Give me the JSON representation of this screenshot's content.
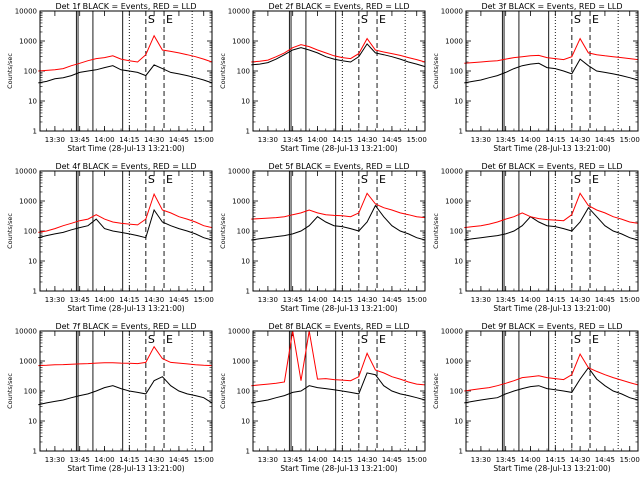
{
  "chart_data": {
    "type": "line",
    "layout": "3x3 grid of panels",
    "grid": false,
    "legend": "none (colors described in each panel title)",
    "ylabel": "Counts/sec",
    "ylog": true,
    "ylim": [
      1,
      10000
    ],
    "yticks": [
      "1",
      "10",
      "100",
      "1000",
      "10000"
    ],
    "xlim": [
      "13:21",
      "15:05"
    ],
    "xticks": [
      "13:30",
      "13:45",
      "14:00",
      "14:15",
      "14:30",
      "14:45",
      "15:00"
    ],
    "xlabel": "Start Time (28-Jul-13 13:21:00)",
    "colors": {
      "events": "#000000",
      "lld": "#ff0000",
      "frame": "#000000"
    },
    "marker_lines": [
      {
        "time": "13:21",
        "style": "dotted",
        "label": ""
      },
      {
        "time": "13:43",
        "style": "solid",
        "label": ""
      },
      {
        "time": "13:44",
        "style": "solid",
        "label": ""
      },
      {
        "time": "13:53",
        "style": "solid",
        "label": ""
      },
      {
        "time": "14:11",
        "style": "solid",
        "label": ""
      },
      {
        "time": "14:15",
        "style": "dotted",
        "label": ""
      },
      {
        "time": "14:25",
        "style": "dashed",
        "label": "S"
      },
      {
        "time": "14:36",
        "style": "dashed",
        "label": "E"
      },
      {
        "time": "14:53",
        "style": "dotted",
        "label": ""
      }
    ],
    "time_samples": [
      "13:20",
      "13:25",
      "13:30",
      "13:35",
      "13:40",
      "13:45",
      "13:50",
      "13:55",
      "14:00",
      "14:05",
      "14:10",
      "14:15",
      "14:20",
      "14:25",
      "14:30",
      "14:35",
      "14:40",
      "14:45",
      "14:50",
      "14:55",
      "15:00",
      "15:05"
    ],
    "panels": [
      {
        "title": "Det 1f BLACK = Events, RED = LLD",
        "series": [
          {
            "name": "Events",
            "color": "#000000",
            "values": [
              40,
              45,
              55,
              60,
              70,
              90,
              100,
              110,
              130,
              150,
              110,
              100,
              90,
              70,
              160,
              120,
              90,
              80,
              70,
              60,
              50,
              40
            ]
          },
          {
            "name": "LLD",
            "color": "#ff0000",
            "values": [
              100,
              105,
              110,
              120,
              150,
              180,
              220,
              260,
              280,
              320,
              250,
              220,
              200,
              350,
              1500,
              500,
              450,
              400,
              350,
              300,
              250,
              200
            ]
          }
        ]
      },
      {
        "title": "Det 2f BLACK = Events, RED = LLD",
        "series": [
          {
            "name": "Events",
            "color": "#000000",
            "values": [
              160,
              170,
              190,
              250,
              350,
              500,
              600,
              500,
              400,
              300,
              250,
              220,
              200,
              300,
              800,
              400,
              350,
              300,
              250,
              200,
              170,
              140
            ]
          },
          {
            "name": "LLD",
            "color": "#ff0000",
            "values": [
              200,
              210,
              230,
              300,
              400,
              600,
              750,
              650,
              500,
              400,
              320,
              280,
              260,
              380,
              1200,
              500,
              430,
              380,
              330,
              280,
              240,
              200
            ]
          }
        ]
      },
      {
        "title": "Det 3f BLACK = Events, RED = LLD",
        "series": [
          {
            "name": "Events",
            "color": "#000000",
            "values": [
              40,
              45,
              50,
              60,
              70,
              90,
              120,
              150,
              170,
              180,
              130,
              120,
              100,
              80,
              250,
              150,
              100,
              90,
              80,
              70,
              60,
              50
            ]
          },
          {
            "name": "LLD",
            "color": "#ff0000",
            "values": [
              180,
              190,
              200,
              210,
              220,
              250,
              280,
              300,
              320,
              330,
              280,
              260,
              240,
              300,
              1200,
              400,
              350,
              320,
              300,
              280,
              260,
              240
            ]
          }
        ]
      },
      {
        "title": "Det 4f BLACK = Events, RED = LLD",
        "series": [
          {
            "name": "Events",
            "color": "#000000",
            "values": [
              60,
              70,
              80,
              90,
              110,
              130,
              150,
              250,
              120,
              100,
              90,
              80,
              70,
              60,
              500,
              200,
              150,
              120,
              100,
              80,
              60,
              50
            ]
          },
          {
            "name": "LLD",
            "color": "#ff0000",
            "values": [
              90,
              100,
              120,
              150,
              180,
              220,
              250,
              350,
              250,
              200,
              180,
              170,
              160,
              250,
              1700,
              500,
              400,
              300,
              250,
              200,
              150,
              130
            ]
          }
        ]
      },
      {
        "title": "Det 5f BLACK = Events, RED = LLD",
        "series": [
          {
            "name": "Events",
            "color": "#000000",
            "values": [
              50,
              55,
              60,
              65,
              70,
              80,
              100,
              150,
              300,
              200,
              150,
              140,
              120,
              100,
              200,
              700,
              300,
              150,
              100,
              80,
              60,
              50
            ]
          },
          {
            "name": "LLD",
            "color": "#ff0000",
            "values": [
              250,
              260,
              270,
              280,
              300,
              350,
              400,
              500,
              400,
              350,
              330,
              320,
              300,
              400,
              1800,
              800,
              600,
              500,
              400,
              350,
              300,
              280
            ]
          }
        ]
      },
      {
        "title": "Det 6f BLACK = Events, RED = LLD",
        "series": [
          {
            "name": "Events",
            "color": "#000000",
            "values": [
              50,
              55,
              60,
              65,
              70,
              80,
              100,
              150,
              300,
              200,
              150,
              140,
              120,
              100,
              200,
              600,
              300,
              150,
              100,
              80,
              60,
              50
            ]
          },
          {
            "name": "LLD",
            "color": "#ff0000",
            "values": [
              130,
              140,
              150,
              170,
              200,
              250,
              300,
              400,
              300,
              260,
              240,
              230,
              220,
              350,
              1800,
              700,
              500,
              400,
              300,
              250,
              200,
              180
            ]
          }
        ]
      },
      {
        "title": "Det 7f BLACK = Events, RED = LLD",
        "series": [
          {
            "name": "Events",
            "color": "#000000",
            "values": [
              35,
              40,
              45,
              50,
              60,
              70,
              80,
              100,
              130,
              150,
              120,
              100,
              90,
              80,
              220,
              300,
              150,
              100,
              80,
              70,
              60,
              40
            ]
          },
          {
            "name": "LLD",
            "color": "#ff0000",
            "values": [
              700,
              720,
              750,
              760,
              780,
              800,
              820,
              850,
              870,
              880,
              850,
              840,
              820,
              900,
              3000,
              1200,
              900,
              850,
              800,
              750,
              720,
              700
            ]
          }
        ]
      },
      {
        "title": "Det 8f BLACK = Events, RED = LLD",
        "series": [
          {
            "name": "Events",
            "color": "#000000",
            "values": [
              40,
              45,
              50,
              60,
              70,
              90,
              100,
              150,
              130,
              120,
              110,
              100,
              90,
              80,
              400,
              350,
              150,
              100,
              80,
              70,
              60,
              50
            ]
          },
          {
            "name": "LLD",
            "color": "#ff0000",
            "values": [
              150,
              160,
              170,
              180,
              200,
              10000,
              220,
              10000,
              250,
              260,
              240,
              230,
              220,
              300,
              1800,
              500,
              400,
              300,
              250,
              200,
              170,
              160
            ]
          }
        ]
      },
      {
        "title": "Det 9f BLACK = Events, RED = LLD",
        "series": [
          {
            "name": "Events",
            "color": "#000000",
            "values": [
              40,
              45,
              50,
              55,
              60,
              80,
              100,
              120,
              140,
              150,
              120,
              110,
              100,
              90,
              250,
              600,
              250,
              150,
              100,
              80,
              60,
              50
            ]
          },
          {
            "name": "LLD",
            "color": "#ff0000",
            "values": [
              100,
              110,
              120,
              130,
              150,
              180,
              220,
              280,
              300,
              320,
              280,
              260,
              240,
              350,
              1700,
              600,
              450,
              350,
              280,
              230,
              190,
              160
            ]
          }
        ]
      }
    ]
  }
}
